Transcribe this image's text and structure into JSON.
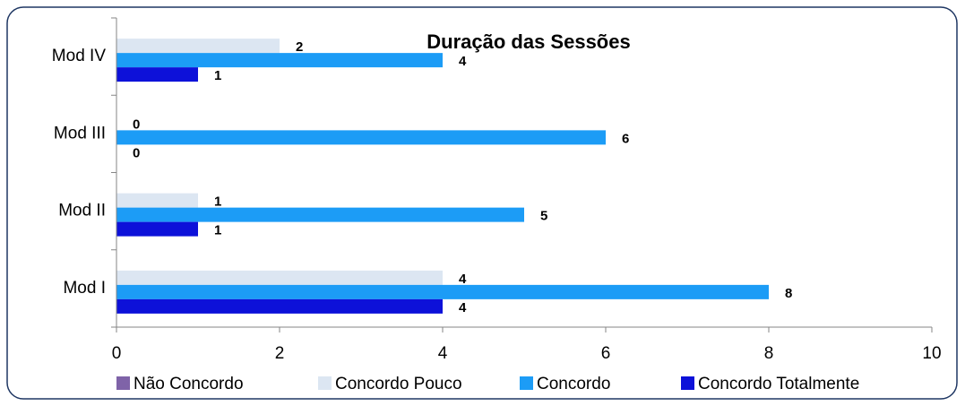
{
  "chart_data": {
    "type": "barh",
    "title": "Duração das Sessões",
    "categories": [
      "Mod I",
      "Mod II",
      "Mod III",
      "Mod IV"
    ],
    "series": [
      {
        "name": "Não Concordo",
        "color": "#7f63a8",
        "values": [
          null,
          null,
          null,
          null
        ]
      },
      {
        "name": "Concordo Pouco",
        "color": "#dce6f2",
        "values": [
          4,
          1,
          0,
          2
        ]
      },
      {
        "name": "Concordo",
        "color": "#1c9cf6",
        "values": [
          8,
          5,
          6,
          4
        ]
      },
      {
        "name": "Concordo Totalmente",
        "color": "#0d11d9",
        "values": [
          4,
          1,
          0,
          1
        ]
      }
    ],
    "xlim": [
      0,
      10
    ],
    "xticks": [
      0,
      2,
      4,
      6,
      8,
      10
    ],
    "legend": "bottom"
  }
}
